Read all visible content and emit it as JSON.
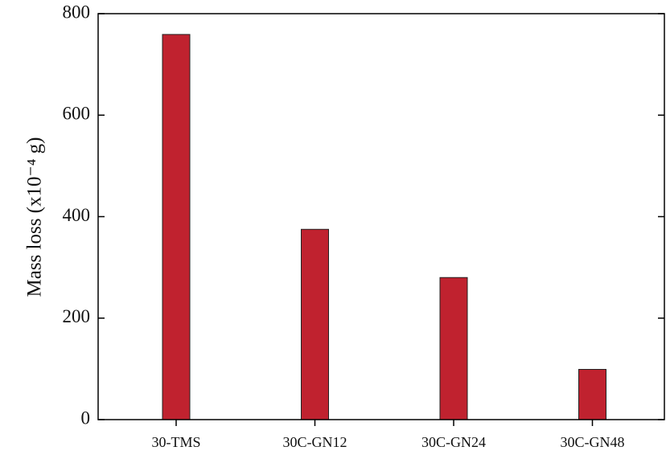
{
  "chart_data": {
    "type": "bar",
    "y_label": "Mass loss (x10⁻⁴ g)",
    "categories": [
      "30-TMS",
      "30C-GN12",
      "30C-GN24",
      "30C-GN48"
    ],
    "values": [
      759,
      375,
      280,
      99
    ],
    "color": "#c0222f",
    "ylim": [
      0,
      800
    ],
    "yticks": [
      0,
      200,
      400,
      600,
      800
    ]
  }
}
